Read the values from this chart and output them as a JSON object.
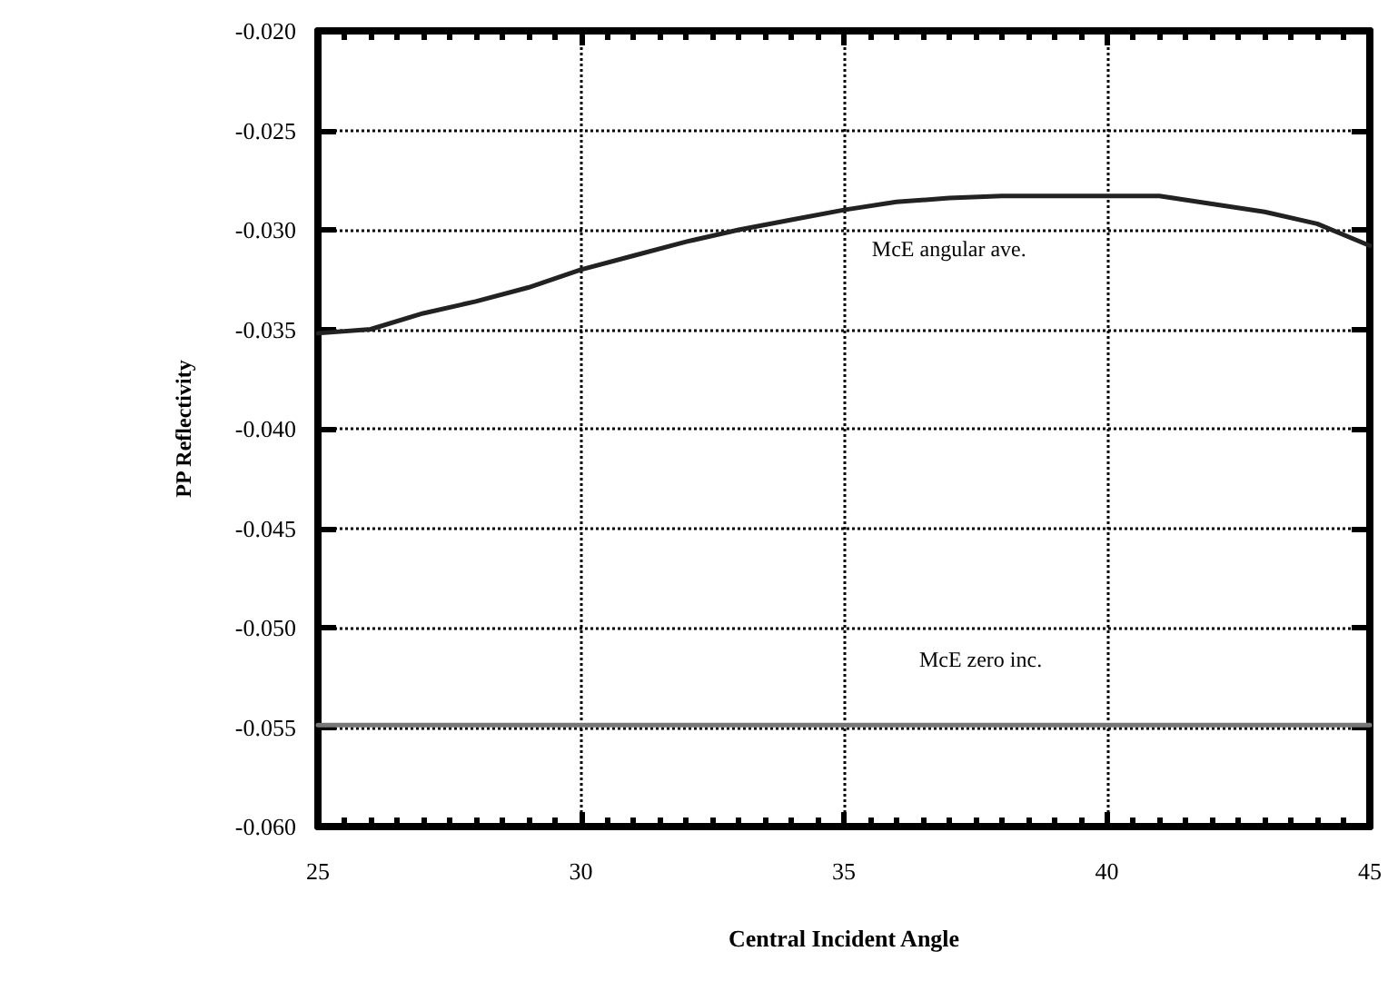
{
  "chart_data": {
    "type": "line",
    "xlabel": "Central Incident Angle",
    "ylabel": "PP Reflectivity",
    "xlim": [
      25,
      45
    ],
    "xticks": [
      25,
      30,
      35,
      40,
      45
    ],
    "ylim": [
      -0.06,
      -0.02
    ],
    "yticks": [
      {
        "value": -0.06,
        "label": "-0.060"
      },
      {
        "value": -0.055,
        "label": "-0.055"
      },
      {
        "value": -0.05,
        "label": "-0.050"
      },
      {
        "value": -0.045,
        "label": "-0.045"
      },
      {
        "value": -0.04,
        "label": "-0.040"
      },
      {
        "value": -0.035,
        "label": "-0.035"
      },
      {
        "value": -0.03,
        "label": "-0.030"
      },
      {
        "value": -0.025,
        "label": "-0.025"
      },
      {
        "value": -0.02,
        "label": "-0.020"
      }
    ],
    "grid": true,
    "marker": "none",
    "line_style": "solid",
    "series": [
      {
        "name": "McE angular ave.",
        "color": "#222222",
        "x": [
          25,
          26,
          27,
          28,
          29,
          30,
          31,
          32,
          33,
          34,
          35,
          36,
          37,
          38,
          39,
          40,
          41,
          42,
          43,
          44,
          45
        ],
        "values": [
          -0.0352,
          -0.035,
          -0.0342,
          -0.0336,
          -0.0329,
          -0.032,
          -0.0313,
          -0.0306,
          -0.03,
          -0.0295,
          -0.029,
          -0.0286,
          -0.0284,
          -0.0283,
          -0.0283,
          -0.0283,
          -0.0283,
          -0.0287,
          -0.0291,
          -0.0297,
          -0.0308
        ]
      },
      {
        "name": "McE zero inc.",
        "color": "#777777",
        "x": [
          25,
          45
        ],
        "values": [
          -0.0549,
          -0.0549
        ]
      }
    ]
  }
}
